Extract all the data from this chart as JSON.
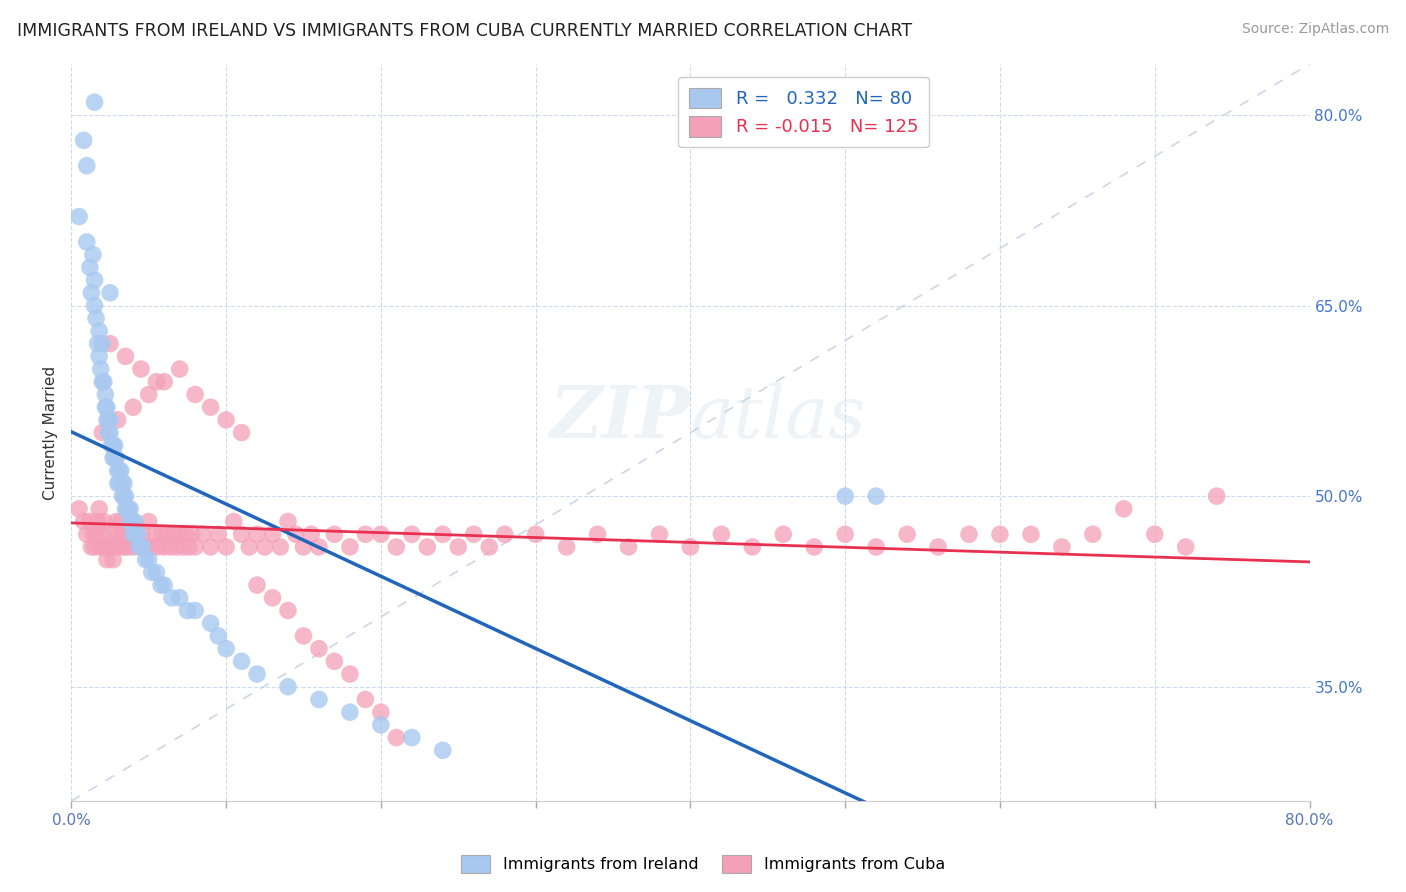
{
  "title": "IMMIGRANTS FROM IRELAND VS IMMIGRANTS FROM CUBA CURRENTLY MARRIED CORRELATION CHART",
  "source": "Source: ZipAtlas.com",
  "ylabel": "Currently Married",
  "right_yticks": [
    "80.0%",
    "65.0%",
    "50.0%",
    "35.0%"
  ],
  "right_ytick_vals": [
    0.8,
    0.65,
    0.5,
    0.35
  ],
  "xmin": 0.0,
  "xmax": 0.8,
  "ymin": 0.26,
  "ymax": 0.84,
  "ireland_R": 0.332,
  "ireland_N": 80,
  "cuba_R": -0.015,
  "cuba_N": 125,
  "ireland_color": "#a8c8f0",
  "cuba_color": "#f4a0b8",
  "ireland_line_color": "#2266bb",
  "cuba_line_color": "#e83050",
  "watermark": "ZIPatlas",
  "ireland_x": [
    0.005,
    0.008,
    0.01,
    0.01,
    0.012,
    0.013,
    0.014,
    0.015,
    0.015,
    0.016,
    0.017,
    0.018,
    0.018,
    0.019,
    0.02,
    0.02,
    0.021,
    0.022,
    0.022,
    0.023,
    0.023,
    0.024,
    0.024,
    0.025,
    0.025,
    0.026,
    0.027,
    0.027,
    0.028,
    0.028,
    0.029,
    0.03,
    0.03,
    0.031,
    0.031,
    0.032,
    0.033,
    0.033,
    0.034,
    0.034,
    0.035,
    0.035,
    0.036,
    0.037,
    0.038,
    0.038,
    0.039,
    0.04,
    0.04,
    0.041,
    0.042,
    0.043,
    0.044,
    0.045,
    0.046,
    0.048,
    0.05,
    0.052,
    0.055,
    0.058,
    0.06,
    0.065,
    0.07,
    0.075,
    0.08,
    0.09,
    0.095,
    0.1,
    0.11,
    0.12,
    0.14,
    0.16,
    0.18,
    0.2,
    0.22,
    0.24,
    0.015,
    0.025,
    0.52,
    0.5
  ],
  "ireland_y": [
    0.72,
    0.78,
    0.7,
    0.76,
    0.68,
    0.66,
    0.69,
    0.65,
    0.67,
    0.64,
    0.62,
    0.63,
    0.61,
    0.6,
    0.62,
    0.59,
    0.59,
    0.58,
    0.57,
    0.57,
    0.56,
    0.56,
    0.55,
    0.56,
    0.55,
    0.54,
    0.54,
    0.53,
    0.54,
    0.53,
    0.53,
    0.52,
    0.51,
    0.52,
    0.51,
    0.52,
    0.51,
    0.5,
    0.51,
    0.5,
    0.5,
    0.49,
    0.49,
    0.49,
    0.49,
    0.48,
    0.48,
    0.48,
    0.47,
    0.48,
    0.47,
    0.47,
    0.46,
    0.46,
    0.46,
    0.45,
    0.45,
    0.44,
    0.44,
    0.43,
    0.43,
    0.42,
    0.42,
    0.41,
    0.41,
    0.4,
    0.39,
    0.38,
    0.37,
    0.36,
    0.35,
    0.34,
    0.33,
    0.32,
    0.31,
    0.3,
    0.81,
    0.66,
    0.5,
    0.5
  ],
  "cuba_x": [
    0.005,
    0.008,
    0.01,
    0.012,
    0.013,
    0.014,
    0.015,
    0.016,
    0.017,
    0.018,
    0.019,
    0.02,
    0.021,
    0.022,
    0.023,
    0.024,
    0.025,
    0.026,
    0.027,
    0.028,
    0.029,
    0.03,
    0.031,
    0.032,
    0.033,
    0.034,
    0.035,
    0.036,
    0.038,
    0.04,
    0.042,
    0.044,
    0.046,
    0.048,
    0.05,
    0.052,
    0.054,
    0.056,
    0.058,
    0.06,
    0.062,
    0.064,
    0.066,
    0.068,
    0.07,
    0.072,
    0.074,
    0.076,
    0.078,
    0.08,
    0.085,
    0.09,
    0.095,
    0.1,
    0.105,
    0.11,
    0.115,
    0.12,
    0.125,
    0.13,
    0.135,
    0.14,
    0.145,
    0.15,
    0.155,
    0.16,
    0.17,
    0.18,
    0.19,
    0.2,
    0.21,
    0.22,
    0.23,
    0.24,
    0.25,
    0.26,
    0.27,
    0.28,
    0.3,
    0.32,
    0.34,
    0.36,
    0.38,
    0.4,
    0.42,
    0.44,
    0.46,
    0.48,
    0.5,
    0.52,
    0.54,
    0.56,
    0.58,
    0.6,
    0.62,
    0.64,
    0.66,
    0.68,
    0.7,
    0.72,
    0.74,
    0.02,
    0.03,
    0.04,
    0.05,
    0.06,
    0.07,
    0.08,
    0.09,
    0.1,
    0.11,
    0.12,
    0.13,
    0.14,
    0.15,
    0.16,
    0.17,
    0.18,
    0.19,
    0.2,
    0.21,
    0.025,
    0.035,
    0.045,
    0.055
  ],
  "cuba_y": [
    0.49,
    0.48,
    0.47,
    0.48,
    0.46,
    0.47,
    0.46,
    0.47,
    0.48,
    0.49,
    0.46,
    0.47,
    0.48,
    0.46,
    0.45,
    0.46,
    0.47,
    0.46,
    0.45,
    0.46,
    0.48,
    0.47,
    0.46,
    0.48,
    0.47,
    0.46,
    0.47,
    0.46,
    0.47,
    0.46,
    0.47,
    0.46,
    0.47,
    0.46,
    0.48,
    0.46,
    0.47,
    0.46,
    0.47,
    0.46,
    0.47,
    0.46,
    0.47,
    0.46,
    0.47,
    0.46,
    0.47,
    0.46,
    0.47,
    0.46,
    0.47,
    0.46,
    0.47,
    0.46,
    0.48,
    0.47,
    0.46,
    0.47,
    0.46,
    0.47,
    0.46,
    0.48,
    0.47,
    0.46,
    0.47,
    0.46,
    0.47,
    0.46,
    0.47,
    0.47,
    0.46,
    0.47,
    0.46,
    0.47,
    0.46,
    0.47,
    0.46,
    0.47,
    0.47,
    0.46,
    0.47,
    0.46,
    0.47,
    0.46,
    0.47,
    0.46,
    0.47,
    0.46,
    0.47,
    0.46,
    0.47,
    0.46,
    0.47,
    0.47,
    0.47,
    0.46,
    0.47,
    0.49,
    0.47,
    0.46,
    0.5,
    0.55,
    0.56,
    0.57,
    0.58,
    0.59,
    0.6,
    0.58,
    0.57,
    0.56,
    0.55,
    0.43,
    0.42,
    0.41,
    0.39,
    0.38,
    0.37,
    0.36,
    0.34,
    0.33,
    0.31,
    0.62,
    0.61,
    0.6,
    0.59
  ]
}
